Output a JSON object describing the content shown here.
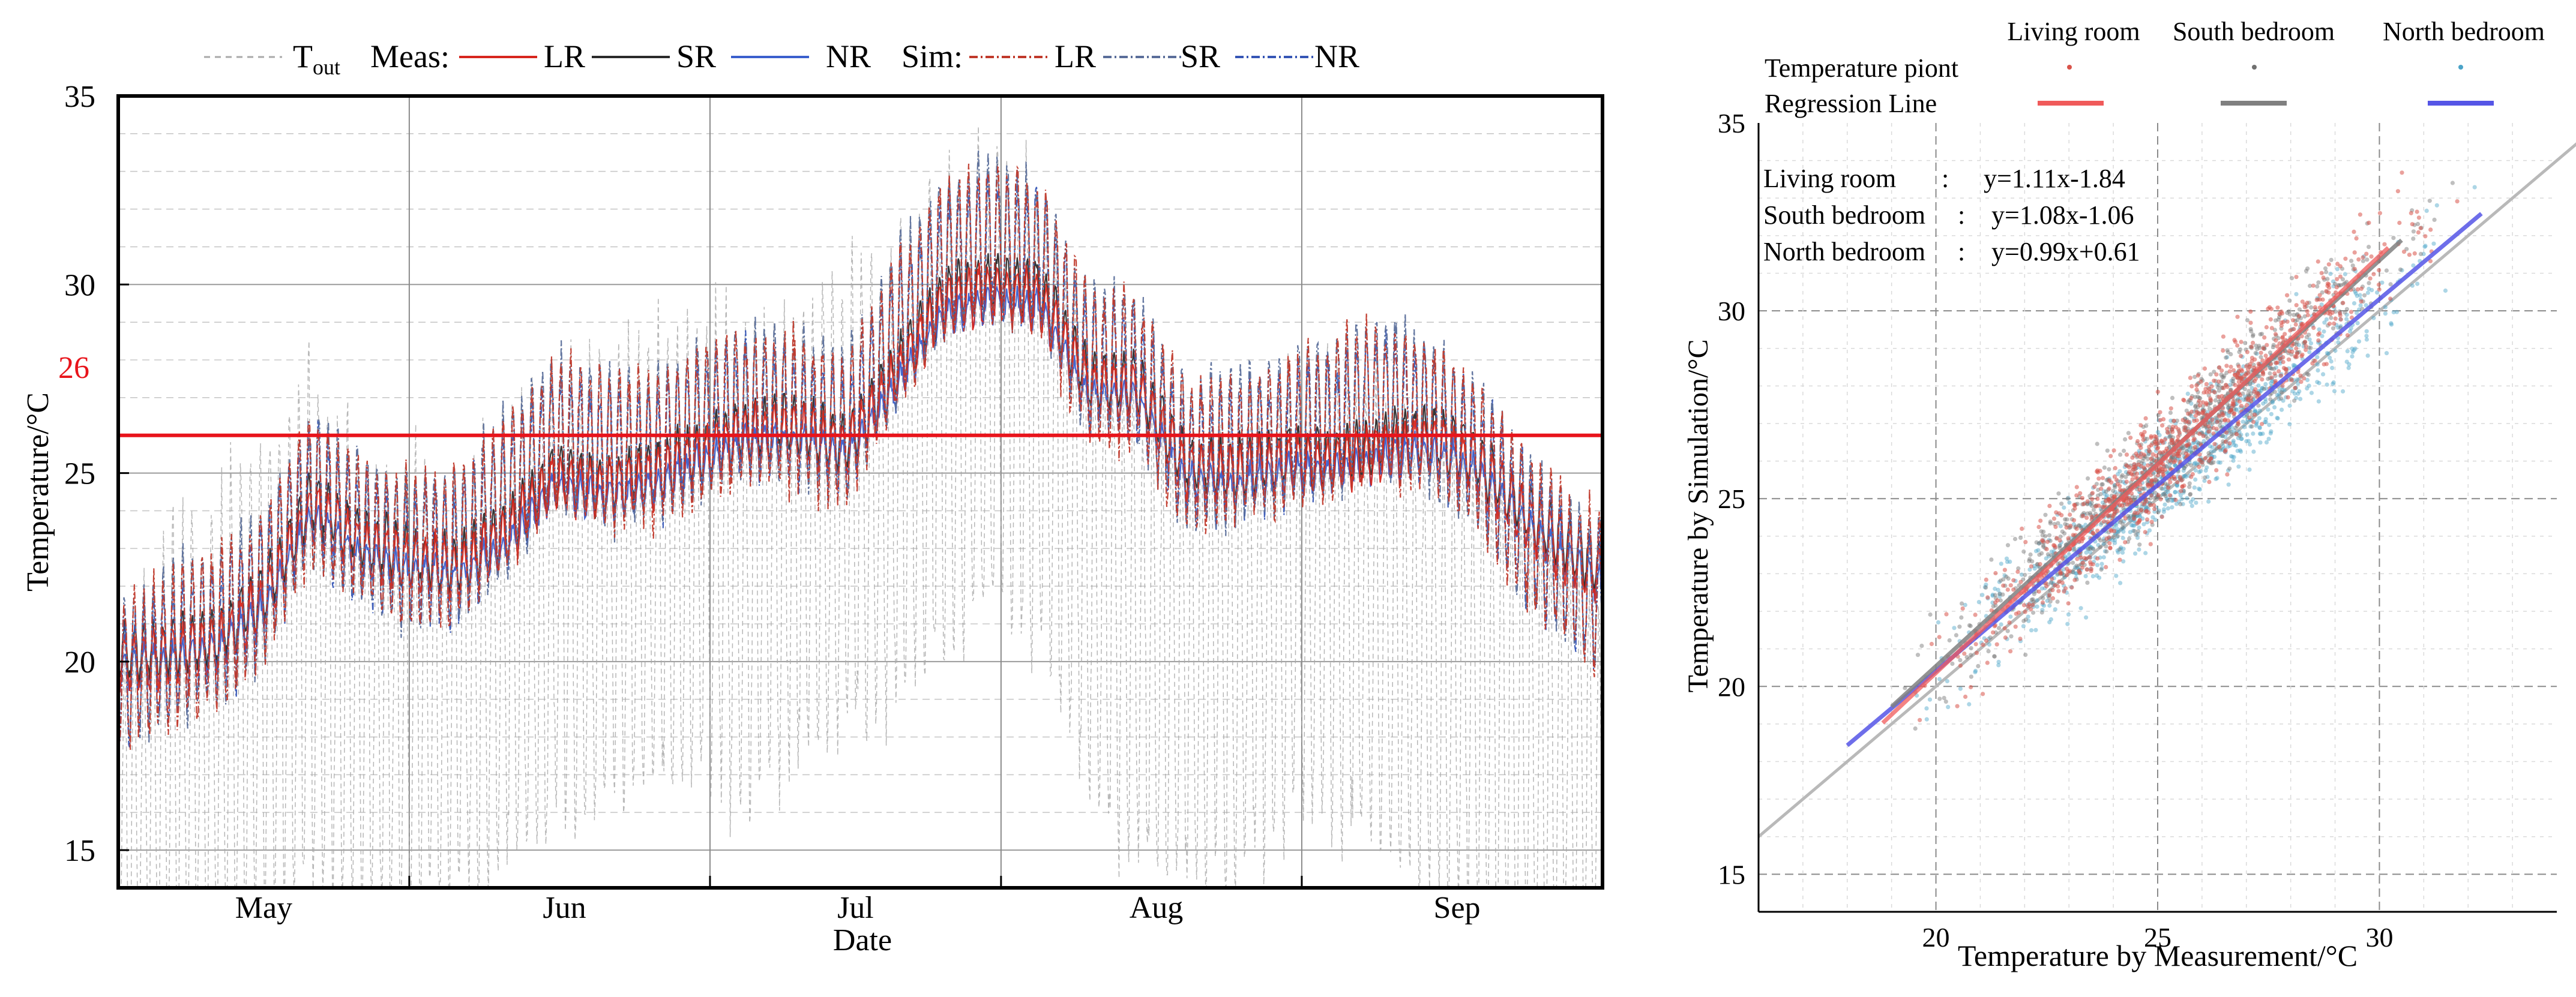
{
  "chart_data": [
    {
      "type": "line",
      "xlabel": "Date",
      "ylabel": "Temperature/°C",
      "ylim": [
        14,
        35
      ],
      "x_range_days": [
        0,
        153
      ],
      "month_ticks": [
        {
          "label": "May",
          "day": 15
        },
        {
          "label": "Jun",
          "day": 46
        },
        {
          "label": "Jul",
          "day": 76
        },
        {
          "label": "Aug",
          "day": 107
        },
        {
          "label": "Sep",
          "day": 138
        }
      ],
      "month_boundaries_days": [
        30,
        61,
        91,
        122
      ],
      "yticks": [
        15,
        20,
        25,
        30,
        35
      ],
      "threshold": {
        "value": 26,
        "label": "26",
        "color": "#e8141b"
      },
      "legend": {
        "tout_label": "T",
        "tout_sub": "out",
        "meas_label": "Meas:",
        "sim_label": "Sim:",
        "items": [
          "LR",
          "SR",
          "NR"
        ]
      },
      "colors": {
        "tout": "#a9a9a9",
        "meas_lr": "#d7261e",
        "meas_sr": "#2b2b2b",
        "meas_nr": "#3a5fcd",
        "sim_lr": "#c0392b",
        "sim_sr": "#5a6e9a",
        "sim_nr": "#3555b5"
      },
      "series": [
        {
          "name": "T_out",
          "style": "dash",
          "samples_day": [
            0,
            5,
            10,
            15,
            20,
            25,
            30,
            35,
            40,
            45,
            50,
            55,
            60,
            65,
            70,
            75,
            80,
            85,
            90,
            95,
            100,
            105,
            110,
            115,
            120,
            125,
            130,
            135,
            140,
            145,
            150,
            153
          ],
          "mean": [
            15.5,
            17.5,
            18.0,
            19.5,
            21.0,
            19.5,
            19.0,
            19.5,
            20.5,
            21.5,
            22.0,
            22.5,
            23.0,
            22.5,
            23.5,
            24.0,
            25.0,
            26.5,
            27.5,
            26.5,
            22.5,
            21.0,
            20.0,
            20.5,
            21.5,
            22.0,
            21.0,
            20.0,
            19.0,
            18.0,
            17.0,
            16.5
          ],
          "amplitude": [
            4.5,
            5.5,
            6.0,
            6.5,
            6.5,
            6.0,
            6.0,
            6.0,
            6.0,
            6.0,
            6.0,
            6.0,
            6.0,
            6.0,
            6.0,
            6.0,
            6.0,
            6.0,
            6.0,
            6.0,
            6.0,
            6.0,
            6.0,
            6.0,
            6.0,
            6.0,
            6.0,
            6.0,
            6.0,
            6.0,
            5.5,
            5.0
          ]
        },
        {
          "name": "Meas LR",
          "samples_day": [
            0,
            5,
            10,
            15,
            20,
            25,
            30,
            35,
            40,
            45,
            50,
            55,
            60,
            65,
            70,
            75,
            80,
            85,
            90,
            95,
            100,
            105,
            110,
            115,
            120,
            125,
            130,
            135,
            140,
            145,
            150,
            153
          ],
          "values": [
            20.0,
            20.1,
            20.4,
            21.5,
            24.0,
            23.0,
            22.6,
            22.4,
            23.3,
            24.8,
            24.5,
            24.8,
            25.4,
            26.0,
            26.0,
            25.6,
            27.4,
            29.4,
            29.8,
            29.6,
            27.2,
            27.2,
            25.0,
            24.9,
            25.2,
            25.2,
            25.5,
            25.8,
            25.2,
            23.8,
            22.8,
            22.2
          ]
        },
        {
          "name": "Meas SR",
          "samples_day": [
            0,
            5,
            10,
            15,
            20,
            25,
            30,
            35,
            40,
            45,
            50,
            55,
            60,
            65,
            70,
            75,
            80,
            85,
            90,
            95,
            100,
            105,
            110,
            115,
            120,
            125,
            130,
            135,
            140,
            145,
            150,
            153
          ],
          "values": [
            20.2,
            20.4,
            20.6,
            21.8,
            24.3,
            23.3,
            22.8,
            22.6,
            23.5,
            25.0,
            24.7,
            25.0,
            25.6,
            26.2,
            26.3,
            25.8,
            27.7,
            29.7,
            30.1,
            29.9,
            27.5,
            27.4,
            25.3,
            25.1,
            25.4,
            25.4,
            25.8,
            26.0,
            25.4,
            24.0,
            23.0,
            22.4
          ]
        },
        {
          "name": "Meas NR",
          "samples_day": [
            0,
            5,
            10,
            15,
            20,
            25,
            30,
            35,
            40,
            45,
            50,
            55,
            60,
            65,
            70,
            75,
            80,
            85,
            90,
            95,
            100,
            105,
            110,
            115,
            120,
            125,
            130,
            135,
            140,
            145,
            150,
            153
          ],
          "values": [
            19.8,
            20.0,
            20.3,
            21.3,
            23.8,
            22.7,
            22.4,
            22.2,
            23.0,
            24.6,
            24.3,
            24.6,
            25.2,
            25.8,
            25.8,
            25.4,
            27.2,
            29.1,
            29.5,
            29.3,
            27.0,
            26.9,
            24.8,
            24.6,
            25.0,
            25.0,
            25.3,
            25.5,
            25.0,
            23.6,
            22.6,
            22.0
          ]
        },
        {
          "name": "Sim LR",
          "style": "dashdot",
          "samples_day": [
            0,
            5,
            10,
            15,
            20,
            25,
            30,
            35,
            40,
            45,
            50,
            55,
            60,
            65,
            70,
            75,
            80,
            85,
            90,
            95,
            100,
            105,
            110,
            115,
            120,
            125,
            130,
            135,
            140,
            145,
            150,
            153
          ],
          "values": [
            19.6,
            20.3,
            20.8,
            22.0,
            24.6,
            23.4,
            22.9,
            23.0,
            24.4,
            26.0,
            25.6,
            25.6,
            26.3,
            26.8,
            26.6,
            26.1,
            28.6,
            30.6,
            31.2,
            30.8,
            27.9,
            27.7,
            25.4,
            25.6,
            26.0,
            26.5,
            27.0,
            26.6,
            25.5,
            23.6,
            22.3,
            21.7
          ]
        },
        {
          "name": "Sim SR",
          "style": "dashdot",
          "samples_day": [
            0,
            5,
            10,
            15,
            20,
            25,
            30,
            35,
            40,
            45,
            50,
            55,
            60,
            65,
            70,
            75,
            80,
            85,
            90,
            95,
            100,
            105,
            110,
            115,
            120,
            125,
            130,
            135,
            140,
            145,
            150,
            153
          ],
          "values": [
            19.7,
            20.4,
            20.9,
            22.1,
            24.7,
            23.5,
            23.0,
            23.1,
            24.5,
            26.1,
            25.7,
            25.7,
            26.4,
            26.9,
            26.7,
            26.2,
            28.7,
            30.7,
            31.3,
            30.9,
            28.0,
            27.8,
            25.5,
            25.7,
            26.1,
            26.6,
            27.1,
            26.7,
            25.6,
            23.7,
            22.4,
            21.8
          ]
        },
        {
          "name": "Sim NR",
          "style": "dashdot",
          "samples_day": [
            0,
            5,
            10,
            15,
            20,
            25,
            30,
            35,
            40,
            45,
            50,
            55,
            60,
            65,
            70,
            75,
            80,
            85,
            90,
            95,
            100,
            105,
            110,
            115,
            120,
            125,
            130,
            135,
            140,
            145,
            150,
            153
          ],
          "values": [
            19.5,
            20.2,
            20.7,
            21.9,
            24.5,
            23.3,
            22.8,
            22.9,
            24.3,
            25.9,
            25.5,
            25.5,
            26.2,
            26.7,
            26.5,
            26.0,
            28.5,
            30.5,
            31.1,
            30.7,
            27.8,
            27.6,
            25.3,
            25.5,
            25.9,
            26.4,
            26.9,
            26.5,
            25.4,
            23.5,
            22.2,
            21.6
          ]
        }
      ]
    },
    {
      "type": "scatter",
      "xlabel": "Temperature by Measurement/°C",
      "ylabel": "Temperature by Simulation/°C",
      "xlim": [
        16,
        34
      ],
      "ylim": [
        14,
        35
      ],
      "xticks": [
        20,
        25,
        30
      ],
      "yticks": [
        15,
        20,
        25,
        30,
        35
      ],
      "legend": {
        "columns": [
          "Living room",
          "South bedroom",
          "North bedroom"
        ],
        "rows": [
          "Temperature piont",
          "Regression Line"
        ]
      },
      "point_colors": [
        "#d9534a",
        "#707070",
        "#4aa3c8"
      ],
      "line_colors": [
        "#f05a5a",
        "#808080",
        "#5555e6"
      ],
      "equations": [
        {
          "room": "Living room",
          "sep": ":",
          "eq": "y=1.11x-1.84"
        },
        {
          "room": "South bedroom",
          "sep": ":",
          "eq": "y=1.08x-1.06"
        },
        {
          "room": "North bedroom",
          "sep": ":",
          "eq": "y=0.99x+0.61"
        }
      ],
      "regressions": [
        {
          "name": "Living room",
          "slope": 1.11,
          "intercept": -1.84,
          "x_range": [
            18.8,
            30.2
          ]
        },
        {
          "name": "South bedroom",
          "slope": 1.08,
          "intercept": -1.06,
          "x_range": [
            19.0,
            30.5
          ]
        },
        {
          "name": "North bedroom",
          "slope": 0.99,
          "intercept": 0.61,
          "x_range": [
            18.0,
            32.3
          ]
        }
      ],
      "reference_line": {
        "slope": 1,
        "intercept": 0
      },
      "point_cloud": {
        "x_range": [
          18.5,
          32.5
        ],
        "count_per_room": 900
      }
    }
  ]
}
